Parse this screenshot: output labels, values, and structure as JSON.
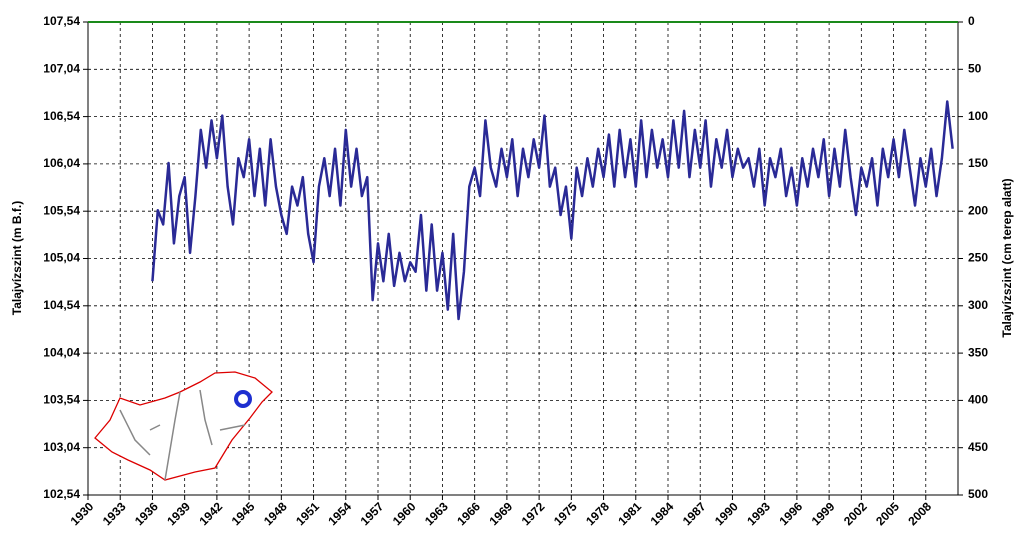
{
  "chart_data": {
    "type": "line",
    "y_label": "Talajvízszint (m B.f.)",
    "y2_label": "Talajvízszint (cm terep alatt)",
    "color": "#2a2a96",
    "grid": true,
    "xlim": [
      1930,
      2011
    ],
    "xticks": [
      1930,
      1933,
      1936,
      1939,
      1942,
      1945,
      1948,
      1951,
      1954,
      1957,
      1960,
      1963,
      1966,
      1969,
      1972,
      1975,
      1978,
      1981,
      1984,
      1987,
      1990,
      1993,
      1996,
      1999,
      2002,
      2005,
      2008
    ],
    "ylim": [
      102.54,
      107.54
    ],
    "yticks": [
      {
        "value": 102.54,
        "label": "102,54"
      },
      {
        "value": 103.04,
        "label": "103,04"
      },
      {
        "value": 103.54,
        "label": "103,54"
      },
      {
        "value": 104.04,
        "label": "104,04"
      },
      {
        "value": 104.54,
        "label": "104,54"
      },
      {
        "value": 105.04,
        "label": "105,04"
      },
      {
        "value": 105.54,
        "label": "105,54"
      },
      {
        "value": 106.04,
        "label": "106,04"
      },
      {
        "value": 106.54,
        "label": "106,54"
      },
      {
        "value": 107.04,
        "label": "107,04"
      },
      {
        "value": 107.54,
        "label": "107,54"
      }
    ],
    "y2lim": [
      500,
      0
    ],
    "y2ticks": [
      0,
      50,
      100,
      150,
      200,
      250,
      300,
      350,
      400,
      450,
      500
    ],
    "x": [
      1936.0,
      1936.5,
      1937.0,
      1937.5,
      1938.0,
      1938.5,
      1939.0,
      1939.5,
      1940.0,
      1940.5,
      1941.0,
      1941.5,
      1942.0,
      1942.5,
      1943.0,
      1943.5,
      1944.0,
      1944.5,
      1945.0,
      1945.5,
      1946.0,
      1946.5,
      1947.0,
      1947.5,
      1948.0,
      1948.5,
      1949.0,
      1949.5,
      1950.0,
      1950.5,
      1951.0,
      1951.5,
      1952.0,
      1952.5,
      1953.0,
      1953.5,
      1954.0,
      1954.5,
      1955.0,
      1955.5,
      1956.0,
      1956.5,
      1957.0,
      1957.5,
      1958.0,
      1958.5,
      1959.0,
      1959.5,
      1960.0,
      1960.5,
      1961.0,
      1961.5,
      1962.0,
      1962.5,
      1963.0,
      1963.5,
      1964.0,
      1964.5,
      1965.0,
      1965.5,
      1966.0,
      1966.5,
      1967.0,
      1967.5,
      1968.0,
      1968.5,
      1969.0,
      1969.5,
      1970.0,
      1970.5,
      1971.0,
      1971.5,
      1972.0,
      1972.5,
      1973.0,
      1973.5,
      1974.0,
      1974.5,
      1975.0,
      1975.5,
      1976.0,
      1976.5,
      1977.0,
      1977.5,
      1978.0,
      1978.5,
      1979.0,
      1979.5,
      1980.0,
      1980.5,
      1981.0,
      1981.5,
      1982.0,
      1982.5,
      1983.0,
      1983.5,
      1984.0,
      1984.5,
      1985.0,
      1985.5,
      1986.0,
      1986.5,
      1987.0,
      1987.5,
      1988.0,
      1988.5,
      1989.0,
      1989.5,
      1990.0,
      1990.5,
      1991.0,
      1991.5,
      1992.0,
      1992.5,
      1993.0,
      1993.5,
      1994.0,
      1994.5,
      1995.0,
      1995.5,
      1996.0,
      1996.5,
      1997.0,
      1997.5,
      1998.0,
      1998.5,
      1999.0,
      1999.5,
      2000.0,
      2000.5,
      2001.0,
      2001.5,
      2002.0,
      2002.5,
      2003.0,
      2003.5,
      2004.0,
      2004.5,
      2005.0,
      2005.5,
      2006.0,
      2006.5,
      2007.0,
      2007.5,
      2008.0,
      2008.5,
      2009.0,
      2009.5,
      2010.0,
      2010.5
    ],
    "values": [
      104.8,
      105.55,
      105.4,
      106.05,
      105.2,
      105.7,
      105.9,
      105.1,
      105.7,
      106.4,
      106.0,
      106.5,
      106.1,
      106.55,
      105.8,
      105.4,
      106.1,
      105.9,
      106.3,
      105.7,
      106.2,
      105.6,
      106.3,
      105.8,
      105.5,
      105.3,
      105.8,
      105.6,
      105.9,
      105.3,
      105.0,
      105.8,
      106.1,
      105.7,
      106.2,
      105.6,
      106.4,
      105.8,
      106.2,
      105.7,
      105.9,
      104.6,
      105.2,
      104.8,
      105.3,
      104.75,
      105.1,
      104.8,
      105.0,
      104.9,
      105.5,
      104.7,
      105.4,
      104.7,
      105.1,
      104.5,
      105.3,
      104.4,
      104.9,
      105.8,
      106.0,
      105.7,
      106.5,
      106.0,
      105.8,
      106.2,
      105.9,
      106.3,
      105.7,
      106.2,
      105.9,
      106.3,
      106.0,
      106.55,
      105.8,
      106.0,
      105.5,
      105.8,
      105.25,
      106.0,
      105.7,
      106.1,
      105.8,
      106.2,
      105.9,
      106.35,
      105.8,
      106.4,
      105.9,
      106.3,
      105.8,
      106.5,
      105.9,
      106.4,
      106.0,
      106.3,
      105.9,
      106.5,
      106.0,
      106.6,
      105.9,
      106.4,
      106.0,
      106.5,
      105.8,
      106.3,
      106.0,
      106.4,
      105.9,
      106.2,
      106.0,
      106.1,
      105.8,
      106.2,
      105.6,
      106.1,
      105.9,
      106.2,
      105.7,
      106.0,
      105.6,
      106.1,
      105.8,
      106.2,
      105.9,
      106.3,
      105.7,
      106.2,
      105.8,
      106.4,
      105.9,
      105.5,
      106.0,
      105.8,
      106.1,
      105.6,
      106.2,
      105.9,
      106.3,
      105.9,
      106.4,
      106.0,
      105.6,
      106.1,
      105.8,
      106.2,
      105.7,
      106.1,
      106.7,
      106.2
    ]
  }
}
